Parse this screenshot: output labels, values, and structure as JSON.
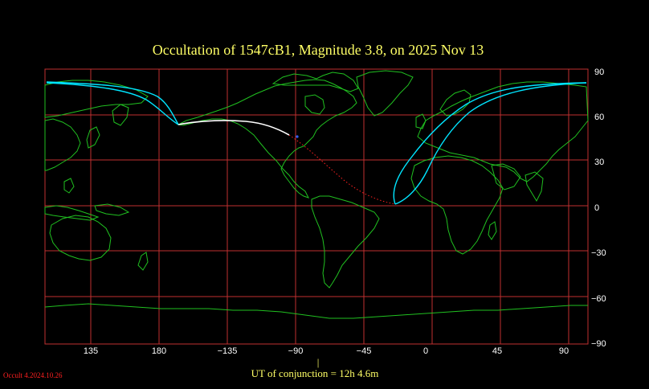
{
  "title": {
    "text": "Occultation  of  1547cB1,       Magnitude 3.8,   on  2025 Nov 13"
  },
  "axes": {
    "x_ticks": [
      "135",
      "180",
      "−135",
      "−90",
      "−45",
      "0",
      "45",
      "90"
    ],
    "y_ticks": [
      "90",
      "60",
      "30",
      "0",
      "−30",
      "−60",
      "−90"
    ]
  },
  "conjunction": {
    "marker": "|",
    "text": "UT of conjunction = 12h  4.6m"
  },
  "version": {
    "text": "Occult 4.2024.10.26"
  },
  "colors": {
    "background": "#000000",
    "grid": "#c03030",
    "coastline": "#20c020",
    "track_visible": "#00e5ff",
    "track_centre": "#ffffff",
    "track_daylight": "#ff2020",
    "title": "#ffff66"
  }
}
